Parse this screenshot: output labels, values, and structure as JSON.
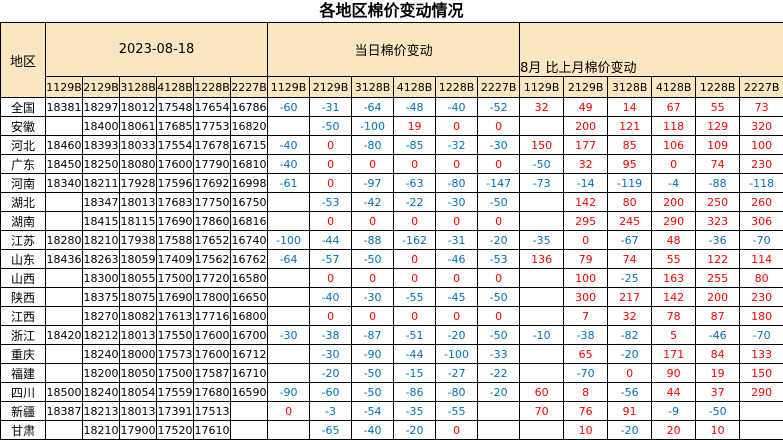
{
  "title": "各地区棉价变动情况",
  "colors": {
    "positive_change": "#FF0000",
    "negative_change": "#0070C0",
    "header_background": "#FAE6C0",
    "grid_border": "#000000"
  },
  "table": {
    "region_header": "地区",
    "groups": [
      {
        "label": "2023-08-18",
        "columns": [
          "1129B",
          "2129B",
          "3128B",
          "4128B",
          "1228B",
          "2227B"
        ]
      },
      {
        "label": "当日棉价变动",
        "columns": [
          "1129B",
          "2129B",
          "3128B",
          "4128B",
          "1228B",
          "2227B"
        ]
      },
      {
        "label": "8月 比上月棉价变动",
        "columns": [
          "1129B",
          "2129B",
          "3128B",
          "4128B",
          "1228B",
          "2227B"
        ]
      }
    ],
    "rows": [
      {
        "region": "全国",
        "prices": [
          "18381",
          "18297",
          "18012",
          "17548",
          "17654",
          "16786"
        ],
        "daily_change": [
          "-60",
          "-31",
          "-64",
          "-48",
          "-40",
          "-52"
        ],
        "monthly_change": [
          "32",
          "49",
          "14",
          "67",
          "55",
          "73"
        ]
      },
      {
        "region": "安徽",
        "prices": [
          "",
          "18400",
          "18061",
          "17685",
          "17753",
          "16820"
        ],
        "daily_change": [
          "",
          "-50",
          "-100",
          "19",
          "0",
          "0"
        ],
        "monthly_change": [
          "",
          "200",
          "121",
          "118",
          "129",
          "320"
        ]
      },
      {
        "region": "河北",
        "prices": [
          "18460",
          "18393",
          "18033",
          "17554",
          "17678",
          "16715"
        ],
        "daily_change": [
          "-40",
          "0",
          "-80",
          "-85",
          "-32",
          "-30"
        ],
        "monthly_change": [
          "150",
          "177",
          "85",
          "106",
          "109",
          "100"
        ]
      },
      {
        "region": "广东",
        "prices": [
          "18450",
          "18250",
          "18080",
          "17600",
          "17790",
          "16810"
        ],
        "daily_change": [
          "-40",
          "0",
          "0",
          "0",
          "0",
          "0"
        ],
        "monthly_change": [
          "-50",
          "32",
          "95",
          "0",
          "74",
          "230"
        ]
      },
      {
        "region": "河南",
        "prices": [
          "18340",
          "18211",
          "17928",
          "17596",
          "17692",
          "16998"
        ],
        "daily_change": [
          "-61",
          "0",
          "-97",
          "-63",
          "-80",
          "-147"
        ],
        "monthly_change": [
          "-73",
          "-14",
          "-119",
          "-4",
          "-88",
          "-118"
        ]
      },
      {
        "region": "湖北",
        "prices": [
          "",
          "18347",
          "18013",
          "17683",
          "17750",
          "16750"
        ],
        "daily_change": [
          "",
          "-53",
          "-42",
          "-22",
          "-30",
          "-50"
        ],
        "monthly_change": [
          "",
          "142",
          "80",
          "200",
          "250",
          "260"
        ]
      },
      {
        "region": "湖南",
        "prices": [
          "",
          "18415",
          "18115",
          "17690",
          "17860",
          "16816"
        ],
        "daily_change": [
          "",
          "0",
          "0",
          "0",
          "0",
          "0"
        ],
        "monthly_change": [
          "",
          "295",
          "245",
          "290",
          "323",
          "306"
        ]
      },
      {
        "region": "江苏",
        "prices": [
          "18280",
          "18210",
          "17938",
          "17588",
          "17652",
          "16740"
        ],
        "daily_change": [
          "-100",
          "-44",
          "-88",
          "-162",
          "-31",
          "-20"
        ],
        "monthly_change": [
          "-35",
          "0",
          "-67",
          "48",
          "-36",
          "-70"
        ]
      },
      {
        "region": "山东",
        "prices": [
          "18436",
          "18263",
          "18059",
          "17409",
          "17562",
          "16762"
        ],
        "daily_change": [
          "-64",
          "-57",
          "-50",
          "0",
          "-46",
          "-53"
        ],
        "monthly_change": [
          "136",
          "79",
          "74",
          "55",
          "122",
          "114"
        ]
      },
      {
        "region": "山西",
        "prices": [
          "",
          "18300",
          "18055",
          "17500",
          "17720",
          "16580"
        ],
        "daily_change": [
          "",
          "0",
          "0",
          "0",
          "0",
          "0"
        ],
        "monthly_change": [
          "",
          "100",
          "-25",
          "163",
          "255",
          "80"
        ]
      },
      {
        "region": "陕西",
        "prices": [
          "",
          "18375",
          "18075",
          "17690",
          "17800",
          "16650"
        ],
        "daily_change": [
          "",
          "-40",
          "-30",
          "-55",
          "-45",
          "-50"
        ],
        "monthly_change": [
          "",
          "300",
          "217",
          "142",
          "200",
          "230"
        ]
      },
      {
        "region": "江西",
        "prices": [
          "",
          "18270",
          "18082",
          "17613",
          "17716",
          "16800"
        ],
        "daily_change": [
          "",
          "0",
          "0",
          "0",
          "0",
          "0"
        ],
        "monthly_change": [
          "",
          "7",
          "32",
          "78",
          "87",
          "180"
        ]
      },
      {
        "region": "浙江",
        "prices": [
          "18420",
          "18212",
          "18013",
          "17550",
          "17600",
          "16700"
        ],
        "daily_change": [
          "-30",
          "-38",
          "-87",
          "-51",
          "-20",
          "-50"
        ],
        "monthly_change": [
          "-10",
          "-38",
          "-82",
          "5",
          "-46",
          "-70"
        ]
      },
      {
        "region": "重庆",
        "prices": [
          "",
          "18240",
          "18000",
          "17573",
          "17600",
          "16712"
        ],
        "daily_change": [
          "",
          "-30",
          "-90",
          "-44",
          "-100",
          "-33"
        ],
        "monthly_change": [
          "",
          "65",
          "-20",
          "171",
          "84",
          "133"
        ]
      },
      {
        "region": "福建",
        "prices": [
          "",
          "18200",
          "18050",
          "17500",
          "17587",
          "16710"
        ],
        "daily_change": [
          "",
          "-20",
          "-50",
          "-15",
          "-27",
          "-22"
        ],
        "monthly_change": [
          "",
          "-70",
          "0",
          "90",
          "19",
          "150"
        ]
      },
      {
        "region": "四川",
        "prices": [
          "18500",
          "18240",
          "18054",
          "17559",
          "17680",
          "16590"
        ],
        "daily_change": [
          "-90",
          "-60",
          "-50",
          "-86",
          "-80",
          "-20"
        ],
        "monthly_change": [
          "60",
          "8",
          "-56",
          "44",
          "37",
          "290"
        ]
      },
      {
        "region": "新疆",
        "prices": [
          "18387",
          "18213",
          "18013",
          "17391",
          "17513",
          ""
        ],
        "daily_change": [
          "0",
          "-3",
          "-54",
          "-35",
          "-55",
          ""
        ],
        "monthly_change": [
          "70",
          "76",
          "91",
          "-9",
          "-50",
          ""
        ]
      },
      {
        "region": "甘肃",
        "prices": [
          "",
          "18210",
          "17900",
          "17520",
          "17610",
          ""
        ],
        "daily_change": [
          "",
          "-65",
          "-40",
          "-20",
          "0",
          ""
        ],
        "monthly_change": [
          "",
          "10",
          "-20",
          "20",
          "10",
          ""
        ]
      }
    ]
  }
}
